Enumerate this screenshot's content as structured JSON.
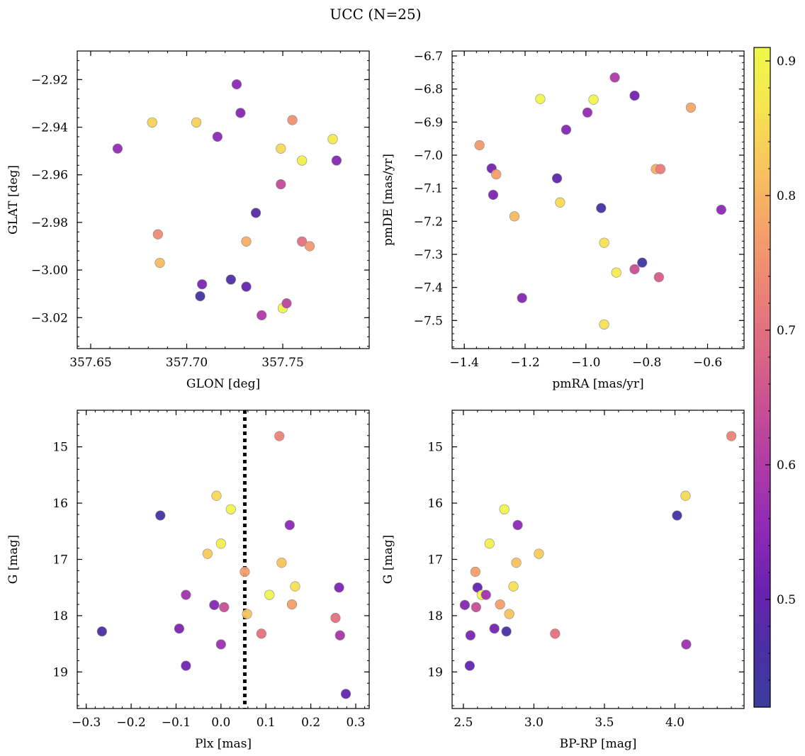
{
  "figure": {
    "title": "UCC (N=25)"
  },
  "colorbar": {
    "colormap": "plasma",
    "range": [
      0.42,
      0.91
    ],
    "ticks": [
      0.5,
      0.6,
      0.7,
      0.8,
      0.9
    ]
  },
  "chart_data": [
    {
      "type": "scatter",
      "panel": "top-left",
      "xlabel": "GLON [deg]",
      "ylabel": "GLAT [deg]",
      "xlim": [
        357.643,
        357.795
      ],
      "ylim": [
        -3.033,
        -2.908
      ],
      "y_inverted": false,
      "xticks": [
        357.65,
        357.7,
        357.75
      ],
      "xtick_labels": [
        "357.65",
        "357.70",
        "357.75"
      ],
      "yticks": [
        -2.92,
        -2.94,
        -2.96,
        -2.98,
        -3.0,
        -3.02
      ],
      "ytick_labels": [
        "−2.92",
        "−2.94",
        "−2.96",
        "−2.98",
        "−3.00",
        "−3.02"
      ],
      "points": [
        {
          "x": 357.664,
          "y": -2.949,
          "c": 0.56
        },
        {
          "x": 357.682,
          "y": -2.938,
          "c": 0.84
        },
        {
          "x": 357.685,
          "y": -2.985,
          "c": 0.74
        },
        {
          "x": 357.686,
          "y": -2.997,
          "c": 0.81
        },
        {
          "x": 357.705,
          "y": -2.938,
          "c": 0.84
        },
        {
          "x": 357.707,
          "y": -3.011,
          "c": 0.45
        },
        {
          "x": 357.708,
          "y": -3.006,
          "c": 0.53
        },
        {
          "x": 357.716,
          "y": -2.944,
          "c": 0.55
        },
        {
          "x": 357.723,
          "y": -3.004,
          "c": 0.47
        },
        {
          "x": 357.726,
          "y": -2.922,
          "c": 0.55
        },
        {
          "x": 357.728,
          "y": -2.934,
          "c": 0.54
        },
        {
          "x": 357.731,
          "y": -3.007,
          "c": 0.5
        },
        {
          "x": 357.731,
          "y": -2.988,
          "c": 0.79
        },
        {
          "x": 357.736,
          "y": -2.976,
          "c": 0.48
        },
        {
          "x": 357.739,
          "y": -3.019,
          "c": 0.6
        },
        {
          "x": 357.749,
          "y": -2.949,
          "c": 0.85
        },
        {
          "x": 357.749,
          "y": -2.964,
          "c": 0.63
        },
        {
          "x": 357.75,
          "y": -3.016,
          "c": 0.9
        },
        {
          "x": 357.752,
          "y": -3.014,
          "c": 0.62
        },
        {
          "x": 357.755,
          "y": -2.937,
          "c": 0.75
        },
        {
          "x": 357.76,
          "y": -2.954,
          "c": 0.89
        },
        {
          "x": 357.76,
          "y": -2.988,
          "c": 0.7
        },
        {
          "x": 357.764,
          "y": -2.99,
          "c": 0.76
        },
        {
          "x": 357.776,
          "y": -2.945,
          "c": 0.88
        },
        {
          "x": 357.778,
          "y": -2.954,
          "c": 0.54
        }
      ]
    },
    {
      "type": "scatter",
      "panel": "top-right",
      "xlabel": "pmRA [mas/yr]",
      "ylabel": "pmDE [mas/yr]",
      "xlim": [
        -1.44,
        -0.48
      ],
      "ylim": [
        -7.585,
        -6.685
      ],
      "y_inverted": false,
      "xticks": [
        -1.4,
        -1.2,
        -1.0,
        -0.8,
        -0.6
      ],
      "xtick_labels": [
        "−1.4",
        "−1.2",
        "−1.0",
        "−0.8",
        "−0.6"
      ],
      "yticks": [
        -6.7,
        -6.8,
        -6.9,
        -7.0,
        -7.1,
        -7.2,
        -7.3,
        -7.4,
        -7.5
      ],
      "ytick_labels": [
        "−6.7",
        "−6.8",
        "−6.9",
        "−7.0",
        "−7.1",
        "−7.2",
        "−7.3",
        "−7.4",
        "−7.5"
      ],
      "points": [
        {
          "x": -1.35,
          "y": -6.97,
          "c": 0.76
        },
        {
          "x": -1.31,
          "y": -7.04,
          "c": 0.52
        },
        {
          "x": -1.305,
          "y": -7.12,
          "c": 0.53
        },
        {
          "x": -1.295,
          "y": -7.058,
          "c": 0.77
        },
        {
          "x": -1.235,
          "y": -7.185,
          "c": 0.81
        },
        {
          "x": -1.21,
          "y": -7.432,
          "c": 0.54
        },
        {
          "x": -1.15,
          "y": -6.83,
          "c": 0.9
        },
        {
          "x": -1.095,
          "y": -7.07,
          "c": 0.49
        },
        {
          "x": -1.085,
          "y": -7.143,
          "c": 0.85
        },
        {
          "x": -1.065,
          "y": -6.923,
          "c": 0.54
        },
        {
          "x": -0.995,
          "y": -6.871,
          "c": 0.56
        },
        {
          "x": -0.975,
          "y": -6.832,
          "c": 0.9
        },
        {
          "x": -0.95,
          "y": -7.16,
          "c": 0.45
        },
        {
          "x": -0.94,
          "y": -7.265,
          "c": 0.86
        },
        {
          "x": -0.94,
          "y": -7.512,
          "c": 0.86
        },
        {
          "x": -0.905,
          "y": -6.765,
          "c": 0.6
        },
        {
          "x": -0.9,
          "y": -7.355,
          "c": 0.88
        },
        {
          "x": -0.84,
          "y": -6.82,
          "c": 0.52
        },
        {
          "x": -0.84,
          "y": -7.345,
          "c": 0.64
        },
        {
          "x": -0.815,
          "y": -7.325,
          "c": 0.44
        },
        {
          "x": -0.77,
          "y": -7.042,
          "c": 0.79
        },
        {
          "x": -0.76,
          "y": -7.369,
          "c": 0.67
        },
        {
          "x": -0.755,
          "y": -7.042,
          "c": 0.72
        },
        {
          "x": -0.655,
          "y": -6.856,
          "c": 0.78
        },
        {
          "x": -0.555,
          "y": -7.165,
          "c": 0.55
        }
      ]
    },
    {
      "type": "scatter",
      "panel": "bottom-left",
      "xlabel": "Plx [mas]",
      "ylabel": "G [mag]",
      "xlim": [
        -0.32,
        0.33
      ],
      "ylim": [
        14.35,
        19.65
      ],
      "y_inverted": true,
      "xticks": [
        -0.3,
        -0.2,
        -0.1,
        0.0,
        0.1,
        0.2,
        0.3
      ],
      "xtick_labels": [
        "−0.3",
        "−0.2",
        "−0.1",
        "0.0",
        "0.1",
        "0.2",
        "0.3"
      ],
      "yticks": [
        15,
        16,
        17,
        18,
        19
      ],
      "ytick_labels": [
        "15",
        "16",
        "17",
        "18",
        "19"
      ],
      "vline": {
        "x": 0.053,
        "style": "dotted"
      },
      "points": [
        {
          "x": -0.265,
          "y": 18.28,
          "c": 0.46
        },
        {
          "x": -0.135,
          "y": 16.22,
          "c": 0.45
        },
        {
          "x": -0.093,
          "y": 18.23,
          "c": 0.53
        },
        {
          "x": -0.078,
          "y": 17.63,
          "c": 0.58
        },
        {
          "x": -0.078,
          "y": 18.89,
          "c": 0.52
        },
        {
          "x": -0.03,
          "y": 16.9,
          "c": 0.83
        },
        {
          "x": -0.015,
          "y": 17.81,
          "c": 0.54
        },
        {
          "x": -0.01,
          "y": 15.87,
          "c": 0.85
        },
        {
          "x": 0.0,
          "y": 18.51,
          "c": 0.57
        },
        {
          "x": 0.0,
          "y": 16.72,
          "c": 0.89
        },
        {
          "x": 0.007,
          "y": 17.85,
          "c": 0.64
        },
        {
          "x": 0.022,
          "y": 16.11,
          "c": 0.9
        },
        {
          "x": 0.053,
          "y": 17.22,
          "c": 0.77
        },
        {
          "x": 0.058,
          "y": 17.97,
          "c": 0.82
        },
        {
          "x": 0.09,
          "y": 18.32,
          "c": 0.7
        },
        {
          "x": 0.108,
          "y": 17.63,
          "c": 0.9
        },
        {
          "x": 0.13,
          "y": 14.81,
          "c": 0.73
        },
        {
          "x": 0.135,
          "y": 17.06,
          "c": 0.82
        },
        {
          "x": 0.153,
          "y": 16.39,
          "c": 0.55
        },
        {
          "x": 0.158,
          "y": 17.8,
          "c": 0.77
        },
        {
          "x": 0.165,
          "y": 17.48,
          "c": 0.86
        },
        {
          "x": 0.255,
          "y": 18.04,
          "c": 0.7
        },
        {
          "x": 0.263,
          "y": 17.5,
          "c": 0.53
        },
        {
          "x": 0.265,
          "y": 18.35,
          "c": 0.59
        },
        {
          "x": 0.278,
          "y": 19.39,
          "c": 0.5
        }
      ]
    },
    {
      "type": "scatter",
      "panel": "bottom-right",
      "xlabel": "BP-RP [mag]",
      "ylabel": "G [mag]",
      "xlim": [
        2.42,
        4.49
      ],
      "ylim": [
        14.35,
        19.65
      ],
      "y_inverted": true,
      "xticks": [
        2.5,
        3.0,
        3.5,
        4.0
      ],
      "xtick_labels": [
        "2.5",
        "3.0",
        "3.5",
        "4.0"
      ],
      "yticks": [
        15,
        16,
        17,
        18,
        19
      ],
      "ytick_labels": [
        "15",
        "16",
        "17",
        "18",
        "19"
      ],
      "points": [
        {
          "x": 2.51,
          "y": 17.81,
          "c": 0.54
        },
        {
          "x": 2.545,
          "y": 18.89,
          "c": 0.5
        },
        {
          "x": 2.55,
          "y": 18.35,
          "c": 0.53
        },
        {
          "x": 2.585,
          "y": 17.22,
          "c": 0.77
        },
        {
          "x": 2.59,
          "y": 17.85,
          "c": 0.64
        },
        {
          "x": 2.6,
          "y": 17.5,
          "c": 0.5
        },
        {
          "x": 2.63,
          "y": 17.63,
          "c": 0.9
        },
        {
          "x": 2.66,
          "y": 17.63,
          "c": 0.58
        },
        {
          "x": 2.685,
          "y": 16.72,
          "c": 0.89
        },
        {
          "x": 2.72,
          "y": 18.23,
          "c": 0.52
        },
        {
          "x": 2.76,
          "y": 17.8,
          "c": 0.77
        },
        {
          "x": 2.79,
          "y": 16.11,
          "c": 0.9
        },
        {
          "x": 2.805,
          "y": 18.28,
          "c": 0.46
        },
        {
          "x": 2.825,
          "y": 17.97,
          "c": 0.82
        },
        {
          "x": 2.855,
          "y": 17.48,
          "c": 0.86
        },
        {
          "x": 2.875,
          "y": 17.06,
          "c": 0.82
        },
        {
          "x": 2.885,
          "y": 16.39,
          "c": 0.55
        },
        {
          "x": 3.035,
          "y": 16.9,
          "c": 0.83
        },
        {
          "x": 3.15,
          "y": 18.32,
          "c": 0.7
        },
        {
          "x": 4.015,
          "y": 16.22,
          "c": 0.45
        },
        {
          "x": 4.075,
          "y": 15.87,
          "c": 0.85
        },
        {
          "x": 4.08,
          "y": 18.51,
          "c": 0.57
        },
        {
          "x": 4.4,
          "y": 14.81,
          "c": 0.73
        }
      ]
    }
  ]
}
